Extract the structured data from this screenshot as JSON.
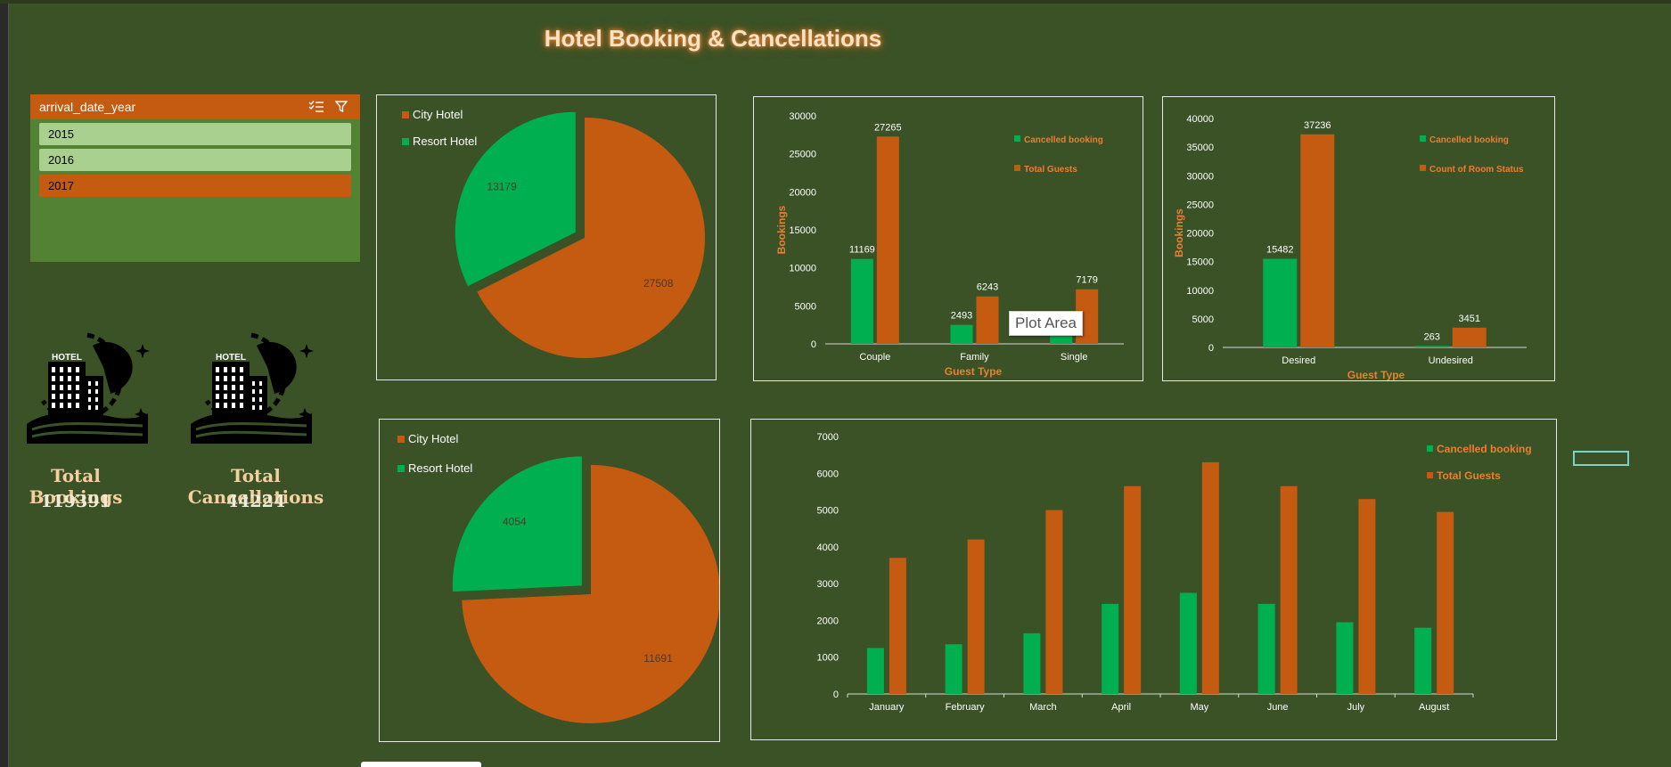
{
  "dashboard": {
    "title": "Hotel Booking  &  Cancellations"
  },
  "slicer": {
    "title": "arrival_date_year",
    "items": [
      {
        "label": "2015",
        "state": "selected"
      },
      {
        "label": "2016",
        "state": "selected"
      },
      {
        "label": "2017",
        "state": "active"
      }
    ],
    "multi_select_icon": "multi-select-icon",
    "clear_filter_icon": "filter-icon"
  },
  "kpis": [
    {
      "label": "Total Bookings",
      "value": "119391",
      "icon": "hotel-icon"
    },
    {
      "label": "Total Cancellations",
      "value": "44224",
      "icon": "hotel-icon"
    }
  ],
  "tooltip": {
    "text": "Plot Area"
  },
  "colors": {
    "green": "#00b050",
    "orange": "#c55a11",
    "bg": "#3a5226",
    "accent_text": "#ed7d31"
  },
  "chart_data": [
    {
      "type": "pie",
      "legend": [
        "City Hotel",
        "Resort Hotel"
      ],
      "slices": [
        {
          "label": "City Hotel",
          "value": 27508
        },
        {
          "label": "Resort Hotel",
          "value": 13179
        }
      ]
    },
    {
      "type": "bar",
      "categories": [
        "Couple",
        "Family",
        "Single"
      ],
      "series": [
        {
          "name": "Cancelled booking",
          "values": [
            11169,
            2493,
            null
          ]
        },
        {
          "name": "Total Guests",
          "values": [
            27265,
            6243,
            7179
          ]
        }
      ],
      "xlabel": "Guest Type",
      "ylabel": "Bookings",
      "ylim": [
        0,
        30000
      ],
      "yticks": [
        "0",
        "5000",
        "10000",
        "15000",
        "20000",
        "25000",
        "30000"
      ],
      "hidden_value_estimate": {
        "Single_cancelled": 1500
      }
    },
    {
      "type": "bar",
      "categories": [
        "Desired",
        "Undesired"
      ],
      "series": [
        {
          "name": "Cancelled booking",
          "values": [
            15482,
            263
          ]
        },
        {
          "name": "Count of Room Status",
          "values": [
            37236,
            3451
          ]
        }
      ],
      "xlabel": "Guest Type",
      "ylabel": "Bookings",
      "ylim": [
        0,
        40000
      ],
      "yticks": [
        "0",
        "5000",
        "10000",
        "15000",
        "20000",
        "25000",
        "30000",
        "35000",
        "40000"
      ]
    },
    {
      "type": "pie",
      "legend": [
        "City Hotel",
        "Resort Hotel"
      ],
      "slices": [
        {
          "label": "City Hotel",
          "value": 11691
        },
        {
          "label": "Resort Hotel",
          "value": 4054
        }
      ]
    },
    {
      "type": "bar",
      "categories": [
        "January",
        "February",
        "March",
        "April",
        "May",
        "June",
        "July",
        "August"
      ],
      "series": [
        {
          "name": "Cancelled booking",
          "values": [
            1250,
            1350,
            1650,
            2450,
            2750,
            2450,
            1950,
            1800
          ]
        },
        {
          "name": "Total Guests",
          "values": [
            3700,
            4200,
            5000,
            5650,
            6300,
            5650,
            5300,
            4950
          ]
        }
      ],
      "ylim": [
        0,
        7000
      ],
      "yticks": [
        "0",
        "1000",
        "2000",
        "3000",
        "4000",
        "5000",
        "6000",
        "7000"
      ]
    }
  ]
}
